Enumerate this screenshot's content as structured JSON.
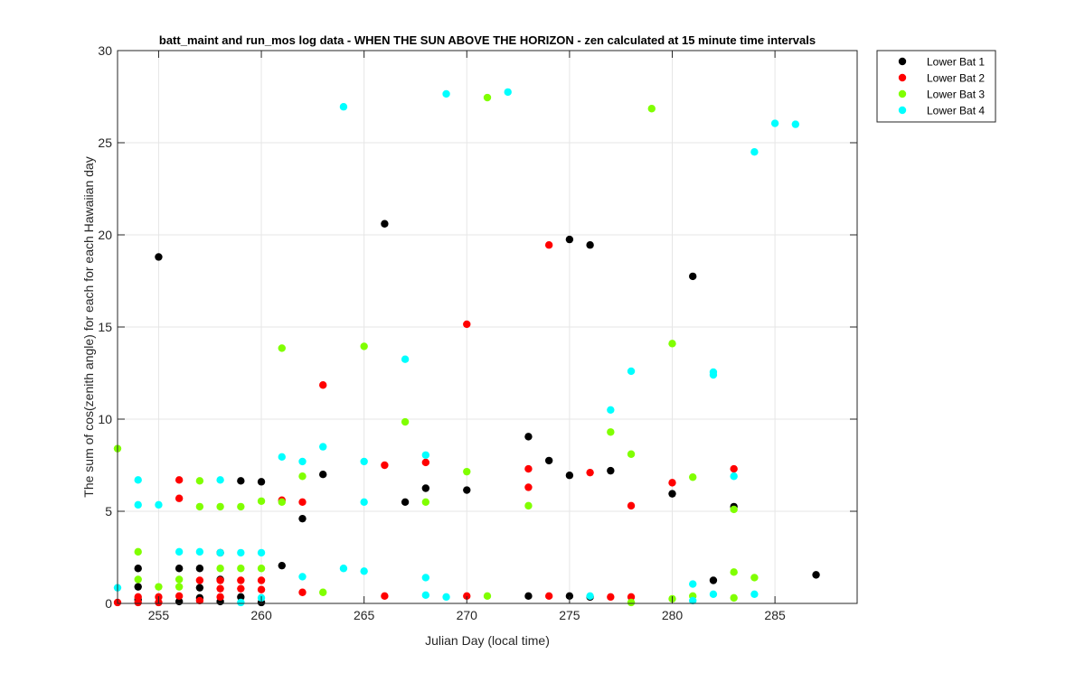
{
  "chart_data": {
    "type": "scatter",
    "title": "batt_maint and run_mos log data - WHEN THE SUN ABOVE THE HORIZON - zen calculated at 15 minute time intervals",
    "xlabel": "Julian Day (local time)",
    "ylabel": "The sum of cos(zenith angle) for each for each Hawaiian day",
    "xlim": [
      253,
      289
    ],
    "ylim": [
      0,
      30
    ],
    "xticks": [
      255,
      260,
      265,
      270,
      275,
      280,
      285
    ],
    "yticks": [
      0,
      5,
      10,
      15,
      20,
      25,
      30
    ],
    "grid": true,
    "legend_position": "outside-top-right",
    "series": [
      {
        "name": "Lower Bat 1",
        "color": "#000000",
        "points": [
          [
            254,
            1.9
          ],
          [
            254,
            0.9
          ],
          [
            254,
            0.2
          ],
          [
            255,
            18.8
          ],
          [
            256,
            1.9
          ],
          [
            256,
            0.1
          ],
          [
            257,
            1.9
          ],
          [
            257,
            0.85
          ],
          [
            257,
            0.3
          ],
          [
            258,
            2.75
          ],
          [
            258,
            1.3
          ],
          [
            258,
            0.1
          ],
          [
            259,
            6.65
          ],
          [
            259,
            0.35
          ],
          [
            260,
            6.6
          ],
          [
            260,
            0.05
          ],
          [
            261,
            2.05
          ],
          [
            262,
            4.6
          ],
          [
            263,
            7.0
          ],
          [
            266,
            20.6
          ],
          [
            267,
            5.5
          ],
          [
            268,
            6.25
          ],
          [
            270,
            6.15
          ],
          [
            273,
            9.05
          ],
          [
            273,
            0.4
          ],
          [
            274,
            7.75
          ],
          [
            275,
            19.75
          ],
          [
            275,
            6.95
          ],
          [
            275,
            0.4
          ],
          [
            276,
            19.45
          ],
          [
            276,
            0.35
          ],
          [
            277,
            7.2
          ],
          [
            280,
            5.95
          ],
          [
            281,
            17.75
          ],
          [
            282,
            1.25
          ],
          [
            283,
            5.25
          ],
          [
            287,
            1.55
          ]
        ]
      },
      {
        "name": "Lower Bat 2",
        "color": "#ff0000",
        "points": [
          [
            253,
            0.05
          ],
          [
            254,
            0.35
          ],
          [
            254,
            0.05
          ],
          [
            255,
            0.35
          ],
          [
            255,
            0.05
          ],
          [
            256,
            6.7
          ],
          [
            256,
            5.7
          ],
          [
            256,
            0.4
          ],
          [
            257,
            1.25
          ],
          [
            257,
            0.15
          ],
          [
            258,
            1.25
          ],
          [
            258,
            0.8
          ],
          [
            258,
            0.35
          ],
          [
            259,
            1.25
          ],
          [
            259,
            0.8
          ],
          [
            260,
            1.25
          ],
          [
            260,
            0.75
          ],
          [
            261,
            5.6
          ],
          [
            262,
            5.5
          ],
          [
            262,
            0.6
          ],
          [
            263,
            11.85
          ],
          [
            266,
            7.5
          ],
          [
            266,
            0.4
          ],
          [
            268,
            7.65
          ],
          [
            270,
            15.15
          ],
          [
            270,
            0.4
          ],
          [
            273,
            7.3
          ],
          [
            273,
            6.3
          ],
          [
            274,
            19.45
          ],
          [
            274,
            0.4
          ],
          [
            276,
            7.1
          ],
          [
            277,
            0.35
          ],
          [
            278,
            5.3
          ],
          [
            278,
            0.35
          ],
          [
            280,
            6.55
          ],
          [
            283,
            7.3
          ]
        ]
      },
      {
        "name": "Lower Bat 3",
        "color": "#80ff00",
        "points": [
          [
            253,
            8.4
          ],
          [
            254,
            2.8
          ],
          [
            254,
            1.3
          ],
          [
            255,
            0.9
          ],
          [
            256,
            1.3
          ],
          [
            256,
            0.9
          ],
          [
            257,
            6.65
          ],
          [
            257,
            5.25
          ],
          [
            258,
            5.25
          ],
          [
            258,
            1.9
          ],
          [
            259,
            5.25
          ],
          [
            259,
            1.9
          ],
          [
            260,
            5.55
          ],
          [
            260,
            1.9
          ],
          [
            261,
            13.85
          ],
          [
            261,
            5.5
          ],
          [
            262,
            6.9
          ],
          [
            263,
            0.6
          ],
          [
            265,
            13.95
          ],
          [
            267,
            9.85
          ],
          [
            268,
            5.5
          ],
          [
            270,
            7.15
          ],
          [
            271,
            27.45
          ],
          [
            271,
            0.4
          ],
          [
            273,
            5.3
          ],
          [
            277,
            9.3
          ],
          [
            278,
            8.1
          ],
          [
            278,
            0.05
          ],
          [
            279,
            26.85
          ],
          [
            280,
            14.1
          ],
          [
            280,
            0.25
          ],
          [
            281,
            6.85
          ],
          [
            281,
            0.4
          ],
          [
            283,
            5.1
          ],
          [
            283,
            1.7
          ],
          [
            283,
            0.3
          ],
          [
            284,
            1.4
          ]
        ]
      },
      {
        "name": "Lower Bat 4",
        "color": "#00ffff",
        "points": [
          [
            253,
            0.85
          ],
          [
            254,
            6.7
          ],
          [
            254,
            5.35
          ],
          [
            255,
            5.35
          ],
          [
            256,
            2.8
          ],
          [
            257,
            2.8
          ],
          [
            258,
            6.7
          ],
          [
            258,
            2.75
          ],
          [
            259,
            2.75
          ],
          [
            259,
            0.05
          ],
          [
            260,
            2.75
          ],
          [
            260,
            0.3
          ],
          [
            261,
            7.95
          ],
          [
            262,
            7.7
          ],
          [
            262,
            1.45
          ],
          [
            263,
            8.5
          ],
          [
            264,
            26.95
          ],
          [
            264,
            1.9
          ],
          [
            265,
            7.7
          ],
          [
            265,
            5.5
          ],
          [
            265,
            1.75
          ],
          [
            267,
            13.25
          ],
          [
            268,
            8.05
          ],
          [
            268,
            1.4
          ],
          [
            268,
            0.45
          ],
          [
            269,
            27.65
          ],
          [
            269,
            0.35
          ],
          [
            272,
            27.75
          ],
          [
            276,
            0.4
          ],
          [
            277,
            10.5
          ],
          [
            278,
            12.6
          ],
          [
            281,
            1.05
          ],
          [
            281,
            0.15
          ],
          [
            282,
            12.55
          ],
          [
            282,
            12.4
          ],
          [
            282,
            0.5
          ],
          [
            283,
            6.9
          ],
          [
            284,
            24.5
          ],
          [
            284,
            0.5
          ],
          [
            285,
            26.05
          ],
          [
            286,
            26.0
          ]
        ]
      }
    ]
  }
}
